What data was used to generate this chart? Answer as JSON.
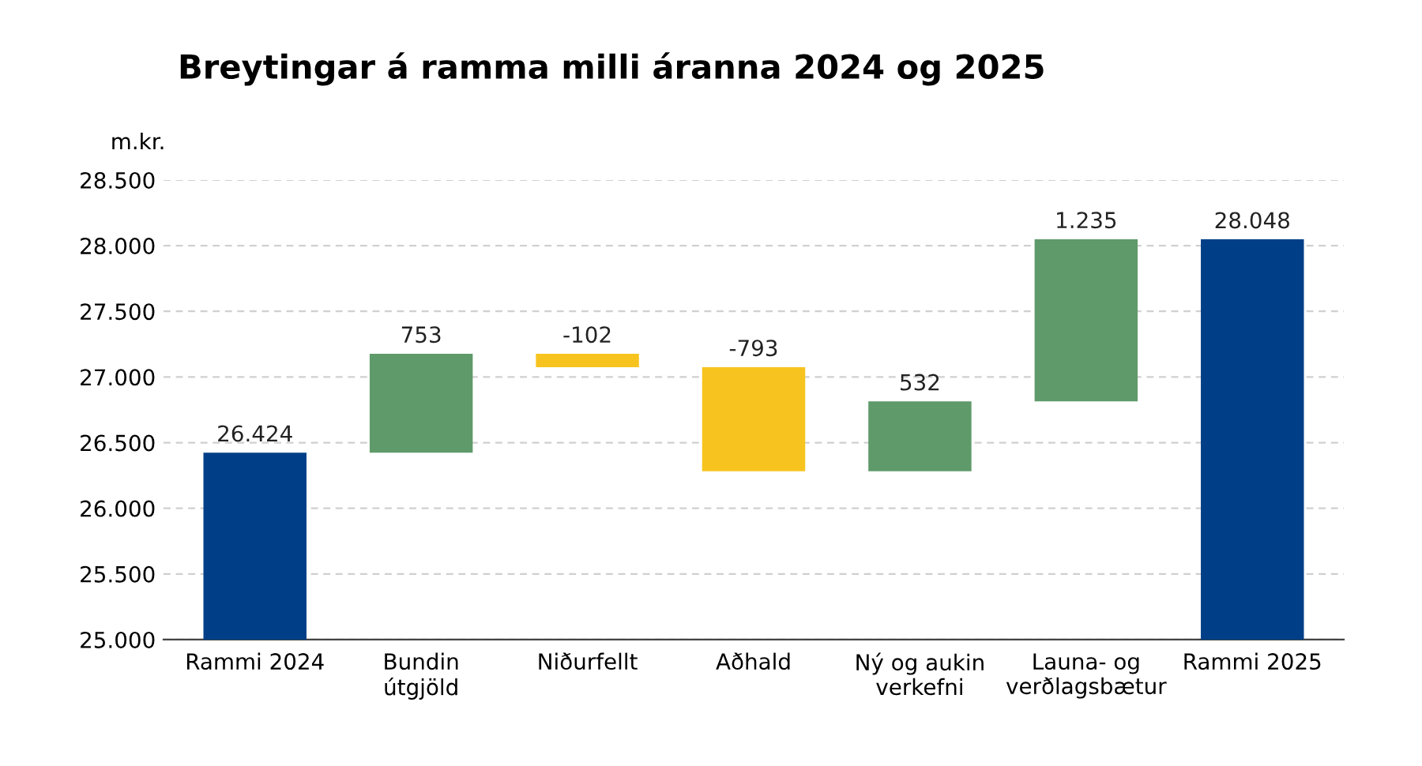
{
  "chart_data": {
    "type": "bar",
    "title": "Breytingar á ramma milli áranna 2024 og 2025",
    "ylabel": "m.kr.",
    "categories": [
      "Rammi 2024",
      "Bundin\nútgjöld",
      "Niðurfellt",
      "Aðhald",
      "Ný og aukin\nverkefni",
      "Launa- og\nverðlagsbætur",
      "Rammi 2025"
    ],
    "values": [
      26424,
      753,
      -102,
      -793,
      532,
      1235,
      28048
    ],
    "base": [
      0,
      26424,
      27177,
      27075,
      26282,
      26814,
      0
    ],
    "colors": [
      "#003f87",
      "#5f9a6a",
      "#f7c41f",
      "#f7c41f",
      "#5f9a6a",
      "#5f9a6a",
      "#003f87"
    ],
    "value_labels": [
      "26.424",
      "753",
      "-102",
      "-793",
      "532",
      "1.235",
      "28.048"
    ],
    "ylim": [
      25000,
      28500
    ],
    "yticks": [
      {
        "value": 25000,
        "label": "25.000"
      },
      {
        "value": 25500,
        "label": "25.500"
      },
      {
        "value": 26000,
        "label": "26.000"
      },
      {
        "value": 26500,
        "label": "26.500"
      },
      {
        "value": 27000,
        "label": "27.000"
      },
      {
        "value": 27500,
        "label": "27.500"
      },
      {
        "value": 28000,
        "label": "28.000"
      },
      {
        "value": 28500,
        "label": "28.500"
      }
    ],
    "grid": "y",
    "legend": false
  }
}
